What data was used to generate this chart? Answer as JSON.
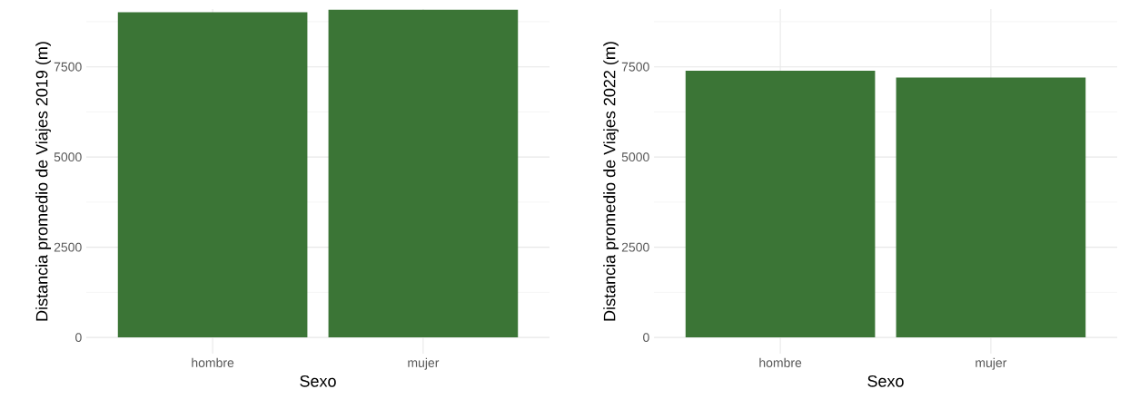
{
  "chart_data": [
    {
      "type": "bar",
      "xlabel": "Sexo",
      "ylabel": "Distancia promedio de Viajes 2019 (m)",
      "categories": [
        "hombre",
        "mujer"
      ],
      "values": [
        9010,
        9080
      ],
      "color": "#3b7536",
      "ylim": [
        -450,
        9100
      ],
      "yticks": [
        0,
        2500,
        5000,
        7500
      ],
      "grid": true
    },
    {
      "type": "bar",
      "xlabel": "Sexo",
      "ylabel": "Distancia promedio de Viajes 2022 (m)",
      "categories": [
        "hombre",
        "mujer"
      ],
      "values": [
        7390,
        7200
      ],
      "color": "#3b7536",
      "ylim": [
        -450,
        9100
      ],
      "yticks": [
        0,
        2500,
        5000,
        7500
      ],
      "grid": true
    }
  ]
}
